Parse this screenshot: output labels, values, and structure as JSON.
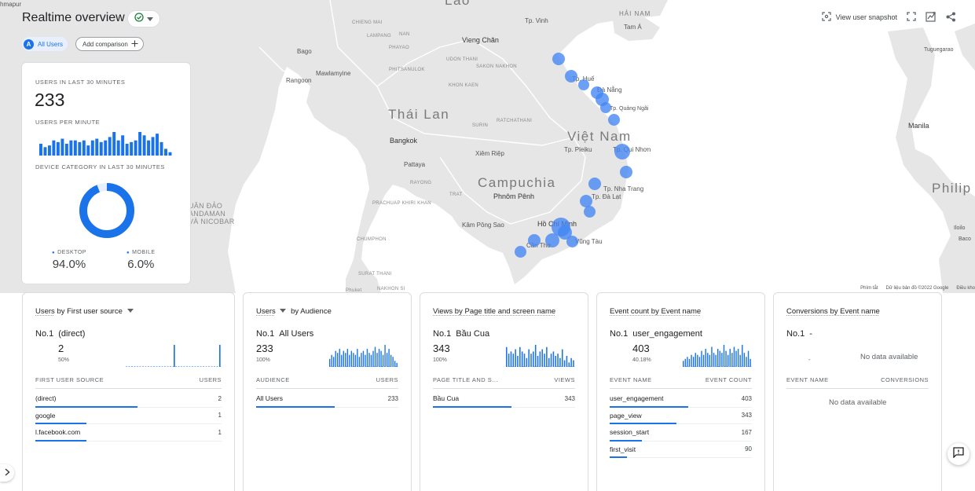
{
  "header": {
    "title": "Realtime overview",
    "chip_all_badge": "A",
    "chip_all_label": "All Users",
    "add_comparison": "Add comparison",
    "view_snapshot": "View user snapshot"
  },
  "map": {
    "countries": [
      "Lào",
      "Thái Lan",
      "Việt Nam",
      "Campuchia",
      "Philip"
    ],
    "cities": [
      "Vieng Chăn",
      "Bangkok",
      "Phnôm Pênh",
      "Hồ Chí Minh",
      "Manila",
      "Bago",
      "Rangoon",
      "Mawlamyine",
      "Pattaya",
      "Xiêm Riệp",
      "Tp. Vinh",
      "Tp. Huế",
      "Đà Nẵng",
      "Tp. Quảng Ngãi",
      "Tp. Pleiku",
      "Tp. Qui Nhơn",
      "Tp. Nha Trang",
      "Tp. Đà Lạt",
      "Vũng Tàu",
      "Cần Thơ",
      "Kâm Pông Sao",
      "HẢI NAM",
      "Tam Á",
      "Tuguegarao",
      "Iloilo",
      "Baco",
      "hmapur"
    ],
    "small_labels": [
      "CHIENG MAI",
      "LAMPANG",
      "PHITSANULOK",
      "PHAYAO",
      "KHON KAEN",
      "SURIN",
      "RATCHATHANI",
      "PRACHUAP KHIRI KHAN",
      "CHUMPHON",
      "SURAT THANI",
      "NAKHON SI",
      "UDON THANI",
      "SAKON NAKHON",
      "NAN",
      "RAYONG",
      "TRAT",
      "UÂN ĐẢO ANDAMAN VÀ NICOBAR",
      "Phuket"
    ],
    "footer_shortcuts": "Phím tắt",
    "footer_data": "Dữ liệu bản đồ ©2022 Google",
    "footer_terms": "Điều kho"
  },
  "overview": {
    "users_label": "USERS IN LAST 30 MINUTES",
    "users_value": "233",
    "per_minute_label": "USERS PER MINUTE",
    "per_minute_values": [
      7,
      5,
      6,
      9,
      8,
      10,
      7,
      9,
      9,
      8,
      9,
      6,
      9,
      10,
      8,
      9,
      11,
      14,
      9,
      12,
      7,
      8,
      9,
      14,
      12,
      9,
      11,
      13,
      8,
      4,
      2
    ],
    "device_label": "DEVICE CATEGORY IN LAST 30 MINUTES",
    "device_desktop_label": "DESKTOP",
    "device_desktop_value": "94.0%",
    "device_desktop_fraction": 0.94,
    "device_mobile_label": "MOBILE",
    "device_mobile_value": "6.0%",
    "device_color": "#1a73e8"
  },
  "cards": [
    {
      "title_link": "Users",
      "title_rest": " by First user source",
      "no1_label": "No.1",
      "no1_name": "(direct)",
      "no1_value": "2",
      "no1_pct": "50%",
      "col1": "FIRST USER SOURCE",
      "col2": "USERS",
      "rows": [
        {
          "name": "(direct)",
          "value": "2",
          "fraction": 1.0
        },
        {
          "name": "google",
          "value": "1",
          "fraction": 0.5
        },
        {
          "name": "l.facebook.com",
          "value": "1",
          "fraction": 0.5
        }
      ],
      "mini": [
        0,
        0,
        0,
        0,
        0,
        0,
        0,
        0,
        0,
        0,
        0,
        0,
        0,
        0,
        0,
        0,
        0,
        0,
        0,
        0,
        2,
        0,
        0,
        0,
        0,
        0,
        0,
        0,
        0,
        0,
        0,
        0,
        0,
        0,
        0,
        0,
        0,
        0,
        0,
        2
      ]
    },
    {
      "title_link": "Users",
      "title_rest": " by Audience",
      "no1_label": "No.1",
      "no1_name": "All Users",
      "no1_value": "233",
      "no1_pct": "100%",
      "col1": "AUDIENCE",
      "col2": "USERS",
      "rows": [
        {
          "name": "All Users",
          "value": "233",
          "fraction": 1.0
        }
      ],
      "mini": [
        4,
        6,
        5,
        8,
        7,
        9,
        6,
        8,
        7,
        9,
        6,
        8,
        7,
        6,
        9,
        5,
        7,
        8,
        6,
        9,
        7,
        6,
        8,
        10,
        7,
        9,
        8,
        6,
        11,
        7,
        9,
        6,
        5,
        3,
        2
      ]
    },
    {
      "title_link": "Views by Page title and screen name",
      "title_rest": "",
      "no1_label": "No.1",
      "no1_name": "Bầu Cua",
      "no1_value": "343",
      "no1_pct": "100%",
      "col1": "PAGE TITLE AND S...",
      "col2": "VIEWS",
      "rows": [
        {
          "name": "Bầu Cua",
          "value": "343",
          "fraction": 1.0
        }
      ],
      "mini": [
        9,
        6,
        7,
        6,
        8,
        5,
        9,
        7,
        6,
        4,
        8,
        6,
        7,
        10,
        5,
        7,
        8,
        6,
        9,
        4,
        6,
        7,
        5,
        6,
        4,
        8,
        3,
        5,
        2,
        4,
        3
      ]
    },
    {
      "title_link": "Event count by Event name",
      "title_rest": "",
      "no1_label": "No.1",
      "no1_name": "user_engagement",
      "no1_value": "403",
      "no1_pct": "40.18%",
      "col1": "EVENT NAME",
      "col2": "EVENT COUNT",
      "rows": [
        {
          "name": "user_engagement",
          "value": "403",
          "fraction": 1.0
        },
        {
          "name": "page_view",
          "value": "343",
          "fraction": 0.85
        },
        {
          "name": "session_start",
          "value": "167",
          "fraction": 0.41
        },
        {
          "name": "first_visit",
          "value": "90",
          "fraction": 0.22
        }
      ],
      "mini": [
        3,
        4,
        5,
        4,
        6,
        5,
        7,
        6,
        5,
        8,
        6,
        9,
        7,
        6,
        10,
        7,
        6,
        9,
        8,
        7,
        11,
        8,
        6,
        9,
        7,
        10,
        8,
        9,
        6,
        11,
        7,
        5,
        8,
        4
      ]
    },
    {
      "title_link": "Conversions by Event name",
      "title_rest": "",
      "no1_label": "No.1",
      "no1_name": "-",
      "chart_empty_dash": "-",
      "no_data_chart": "No data available",
      "col1": "EVENT NAME",
      "col2": "CONVERSIONS",
      "no_data_table": "No data available"
    }
  ]
}
